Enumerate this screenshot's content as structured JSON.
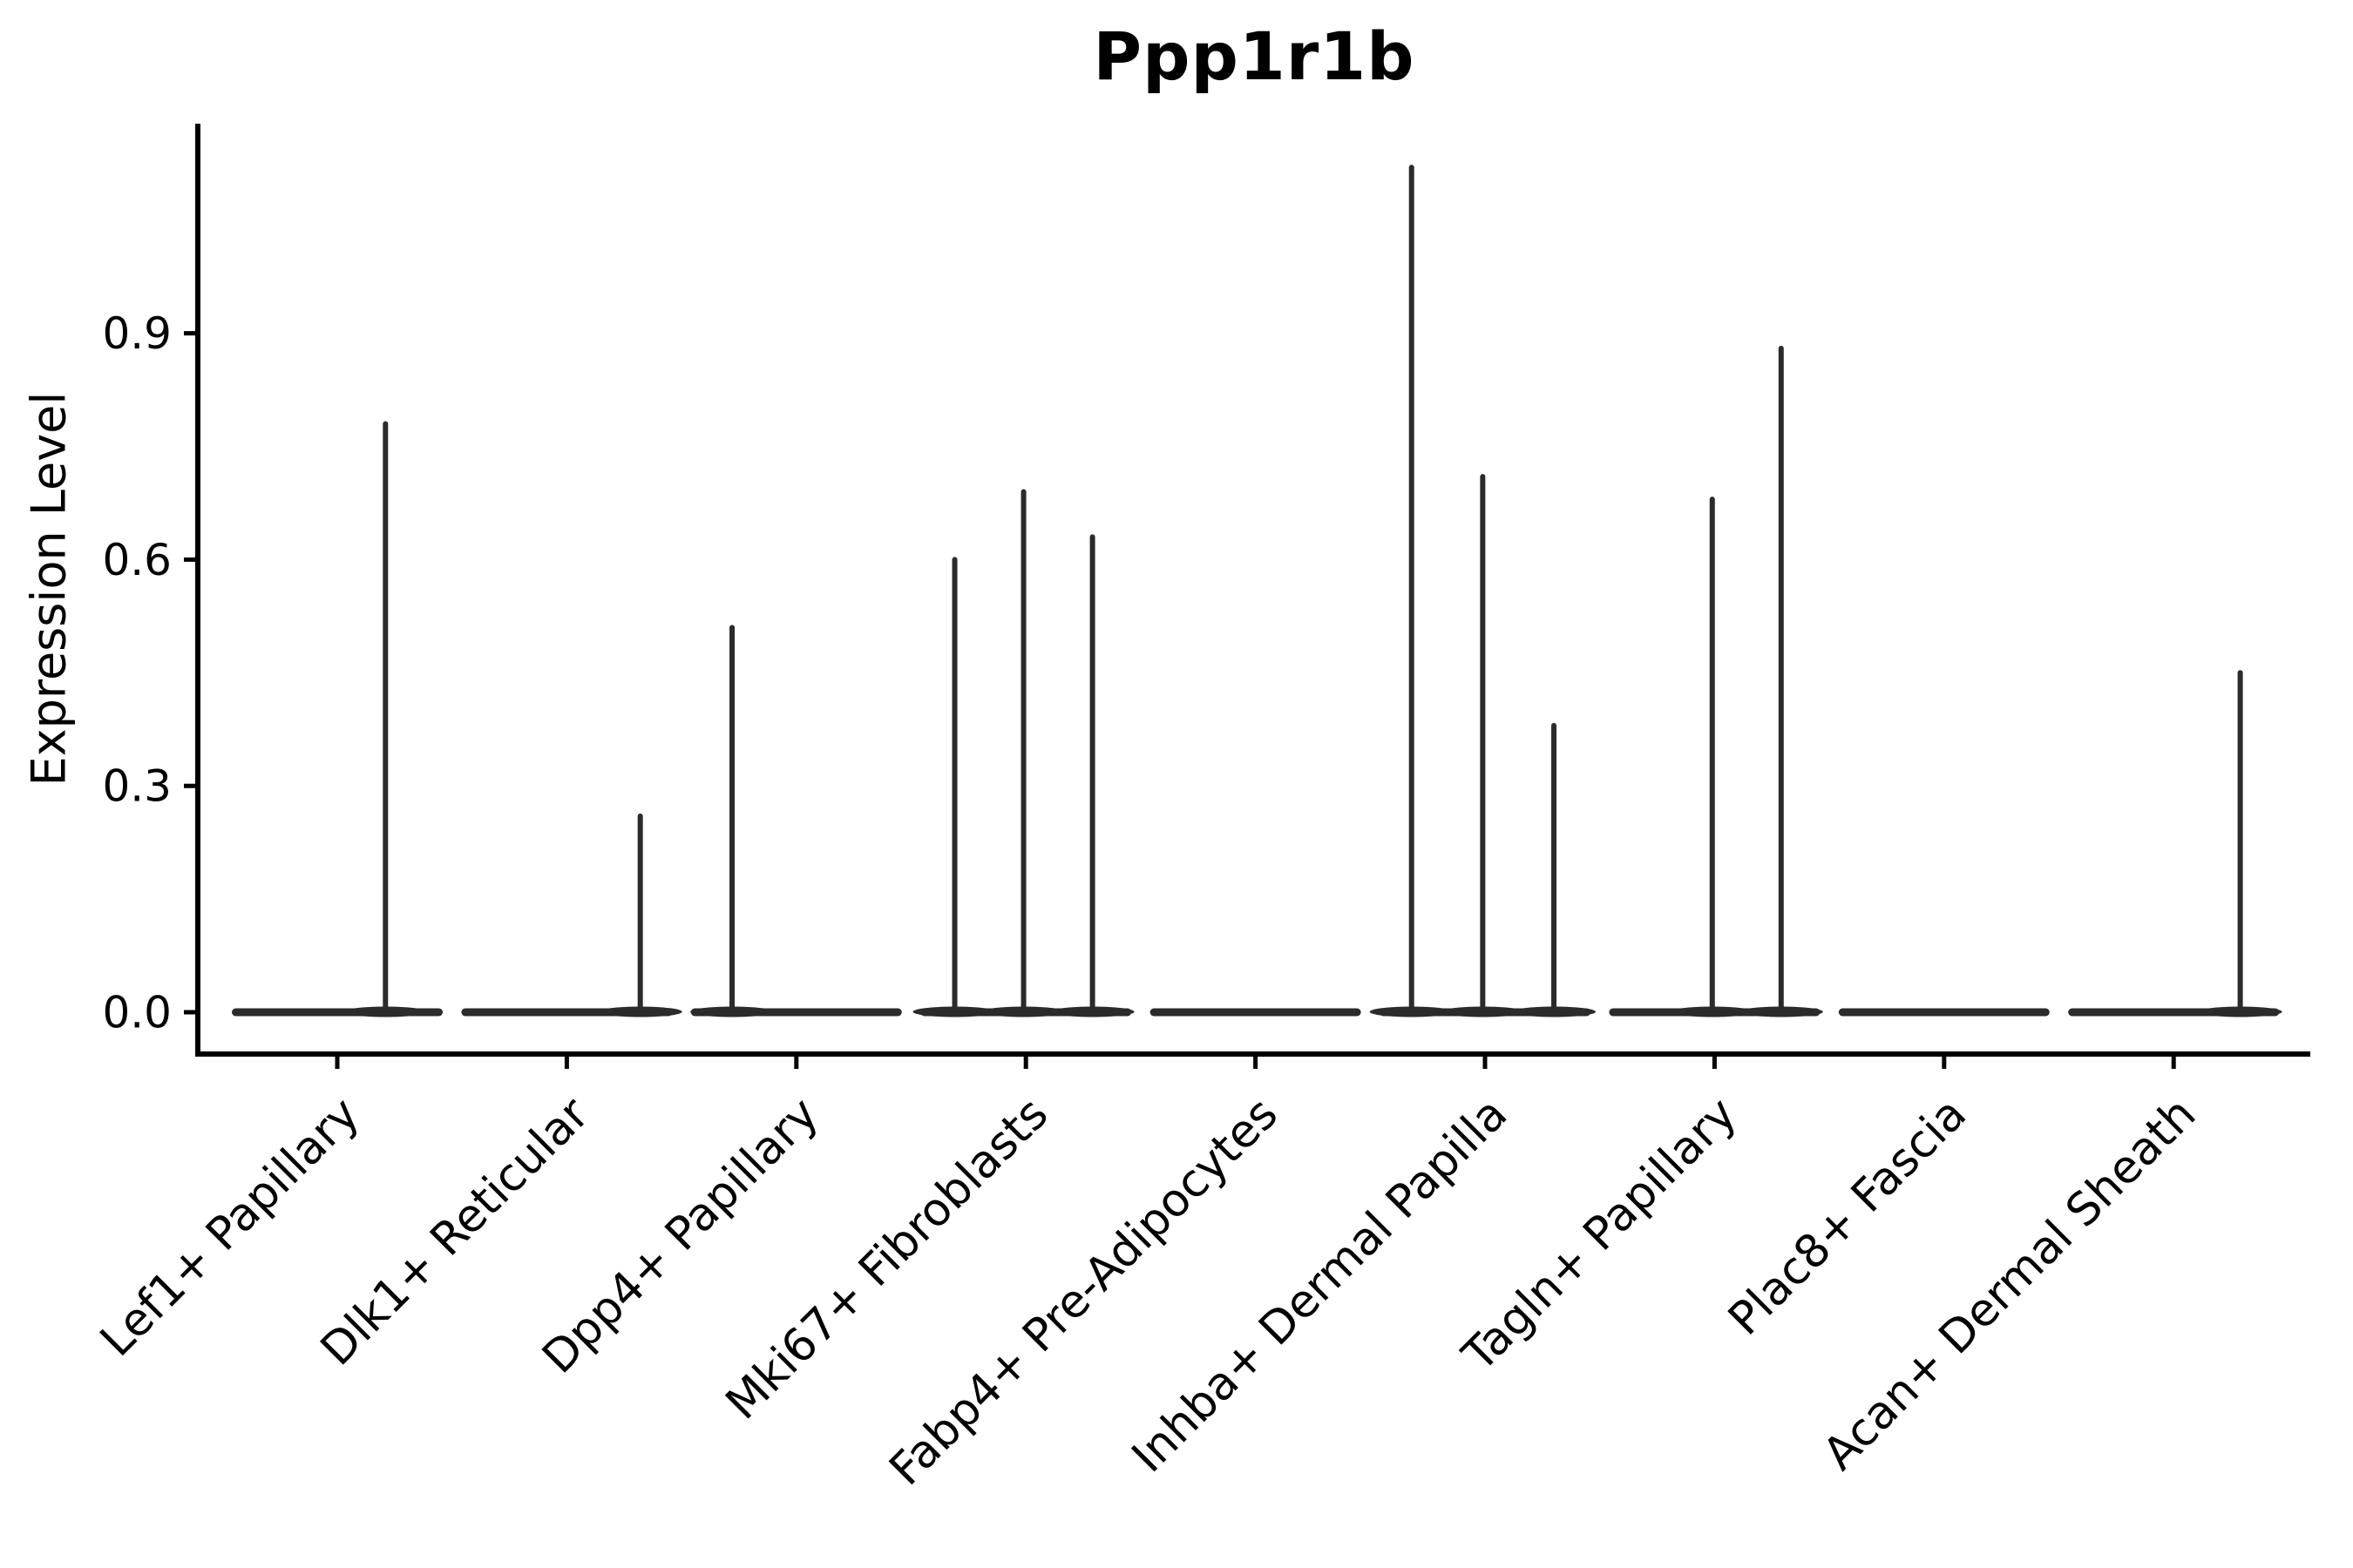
{
  "chart_data": {
    "type": "violin",
    "title": "Ppp1r1b",
    "ylabel": "Expression Level",
    "xlabel": "",
    "legend": "none",
    "grid": false,
    "background": "#ffffff",
    "x_label_rotation_deg": 45,
    "ylim": [
      -0.055,
      1.178
    ],
    "ytick_values": [
      0.0,
      0.3,
      0.6,
      0.9
    ],
    "ytick_labels": [
      "0.0",
      "0.3",
      "0.6",
      "0.9"
    ],
    "categories": [
      "Lef1+ Papillary",
      "Dlk1+ Reticular",
      "Dpp4+ Papillary",
      "Mki67+ Fibroblasts",
      "Fabp4+ Pre-Adipocytes",
      "Inhba+ Dermal Papilla",
      "Tagln+ Papillary",
      "Plac8+ Fascia",
      "Acan+ Dermal Sheath"
    ],
    "violins": [
      {
        "category": "Lef1+ Papillary",
        "baseline_value": 0.0,
        "spikes": [
          {
            "x_offset": 0.21,
            "value": 0.78
          }
        ]
      },
      {
        "category": "Dlk1+ Reticular",
        "baseline_value": 0.0,
        "spikes": [
          {
            "x_offset": 0.32,
            "value": 0.26
          }
        ]
      },
      {
        "category": "Dpp4+ Papillary",
        "baseline_value": 0.0,
        "spikes": [
          {
            "x_offset": -0.28,
            "value": 0.51
          }
        ]
      },
      {
        "category": "Mki67+ Fibroblasts",
        "baseline_value": 0.0,
        "spikes": [
          {
            "x_offset": -0.31,
            "value": 0.6
          },
          {
            "x_offset": -0.01,
            "value": 0.69
          },
          {
            "x_offset": 0.29,
            "value": 0.63
          }
        ]
      },
      {
        "category": "Fabp4+ Pre-Adipocytes",
        "baseline_value": 0.0,
        "spikes": []
      },
      {
        "category": "Inhba+ Dermal Papilla",
        "baseline_value": 0.0,
        "spikes": [
          {
            "x_offset": -0.32,
            "value": 1.12
          },
          {
            "x_offset": -0.01,
            "value": 0.71
          },
          {
            "x_offset": 0.3,
            "value": 0.38
          }
        ]
      },
      {
        "category": "Tagln+ Papillary",
        "baseline_value": 0.0,
        "spikes": [
          {
            "x_offset": -0.01,
            "value": 0.68
          },
          {
            "x_offset": 0.29,
            "value": 0.88
          }
        ]
      },
      {
        "category": "Plac8+ Fascia",
        "baseline_value": 0.0,
        "spikes": []
      },
      {
        "category": "Acan+ Dermal Sheath",
        "baseline_value": 0.0,
        "spikes": [
          {
            "x_offset": 0.29,
            "value": 0.45
          }
        ]
      }
    ],
    "colors": {
      "violin": "#2b2b2b",
      "axis": "#000000",
      "text": "#000000"
    }
  }
}
